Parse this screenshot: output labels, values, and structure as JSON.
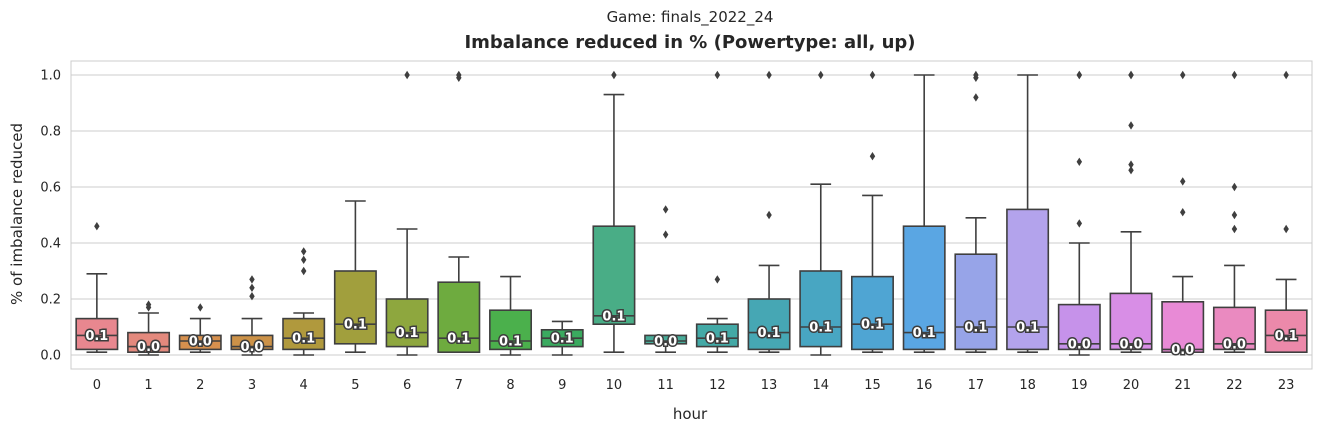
{
  "chart_data": {
    "type": "box",
    "suptitle": "Game: finals_2022_24",
    "title": "Imbalance reduced in % (Powertype: all, up)",
    "xlabel": "hour",
    "ylabel": "% of imbalance reduced",
    "ylim": [
      -0.05,
      1.05
    ],
    "yticks": [
      "0.0",
      "0.2",
      "0.4",
      "0.6",
      "0.8",
      "1.0"
    ],
    "ytick_values": [
      0.0,
      0.2,
      0.4,
      0.6,
      0.8,
      1.0
    ],
    "grid": true,
    "categories": [
      "0",
      "1",
      "2",
      "3",
      "4",
      "5",
      "6",
      "7",
      "8",
      "9",
      "10",
      "11",
      "12",
      "13",
      "14",
      "15",
      "16",
      "17",
      "18",
      "19",
      "20",
      "21",
      "22",
      "23"
    ],
    "boxes": [
      {
        "q1": 0.02,
        "median": 0.07,
        "q3": 0.13,
        "whislo": 0.01,
        "whishi": 0.29,
        "fliers": [
          0.46
        ],
        "color": "#e8878f",
        "label": "0.1"
      },
      {
        "q1": 0.01,
        "median": 0.03,
        "q3": 0.08,
        "whislo": 0.0,
        "whishi": 0.15,
        "fliers": [
          0.17,
          0.18
        ],
        "color": "#e3897d",
        "label": "0.0"
      },
      {
        "q1": 0.02,
        "median": 0.05,
        "q3": 0.07,
        "whislo": 0.01,
        "whishi": 0.13,
        "fliers": [
          0.17
        ],
        "color": "#d6904e",
        "label": "0.0"
      },
      {
        "q1": 0.02,
        "median": 0.03,
        "q3": 0.07,
        "whislo": 0.0,
        "whishi": 0.13,
        "fliers": [
          0.21,
          0.24,
          0.27
        ],
        "color": "#cc9248",
        "label": "0.0"
      },
      {
        "q1": 0.02,
        "median": 0.06,
        "q3": 0.13,
        "whislo": 0.0,
        "whishi": 0.15,
        "fliers": [
          0.3,
          0.34,
          0.37
        ],
        "color": "#b0993d",
        "label": "0.1"
      },
      {
        "q1": 0.04,
        "median": 0.11,
        "q3": 0.3,
        "whislo": 0.01,
        "whishi": 0.55,
        "fliers": [],
        "color": "#a19f3d",
        "label": "0.1"
      },
      {
        "q1": 0.03,
        "median": 0.08,
        "q3": 0.2,
        "whislo": 0.0,
        "whishi": 0.45,
        "fliers": [
          1.0
        ],
        "color": "#8ea73e",
        "label": "0.1"
      },
      {
        "q1": 0.01,
        "median": 0.06,
        "q3": 0.26,
        "whislo": 0.01,
        "whishi": 0.35,
        "fliers": [
          0.99,
          1.0
        ],
        "color": "#6eab3f",
        "label": "0.1"
      },
      {
        "q1": 0.02,
        "median": 0.05,
        "q3": 0.16,
        "whislo": 0.0,
        "whishi": 0.28,
        "fliers": [],
        "color": "#4bb04c",
        "label": "0.1"
      },
      {
        "q1": 0.03,
        "median": 0.06,
        "q3": 0.09,
        "whislo": 0.0,
        "whishi": 0.12,
        "fliers": [],
        "color": "#3aaa5f",
        "label": "0.1"
      },
      {
        "q1": 0.11,
        "median": 0.14,
        "q3": 0.46,
        "whislo": 0.01,
        "whishi": 0.93,
        "fliers": [
          1.0
        ],
        "color": "#49ad86",
        "label": "0.1"
      },
      {
        "q1": 0.04,
        "median": 0.05,
        "q3": 0.07,
        "whislo": 0.01,
        "whishi": 0.07,
        "fliers": [
          0.43,
          0.52
        ],
        "color": "#47ab98",
        "label": "0.0"
      },
      {
        "q1": 0.03,
        "median": 0.06,
        "q3": 0.11,
        "whislo": 0.01,
        "whishi": 0.13,
        "fliers": [
          0.27,
          1.0
        ],
        "color": "#43a9a6",
        "label": "0.1"
      },
      {
        "q1": 0.02,
        "median": 0.08,
        "q3": 0.2,
        "whislo": 0.01,
        "whishi": 0.32,
        "fliers": [
          0.5,
          1.0
        ],
        "color": "#46a7b4",
        "label": "0.1"
      },
      {
        "q1": 0.03,
        "median": 0.1,
        "q3": 0.3,
        "whislo": 0.0,
        "whishi": 0.61,
        "fliers": [
          1.0
        ],
        "color": "#48a6c2",
        "label": "0.1"
      },
      {
        "q1": 0.02,
        "median": 0.11,
        "q3": 0.28,
        "whislo": 0.01,
        "whishi": 0.57,
        "fliers": [
          0.71,
          1.0
        ],
        "color": "#4fa5d3",
        "label": "0.1"
      },
      {
        "q1": 0.02,
        "median": 0.08,
        "q3": 0.46,
        "whislo": 0.01,
        "whishi": 1.0,
        "fliers": [],
        "color": "#5aa6e3",
        "label": "0.1"
      },
      {
        "q1": 0.02,
        "median": 0.1,
        "q3": 0.36,
        "whislo": 0.01,
        "whishi": 0.49,
        "fliers": [
          0.92,
          0.99,
          1.0
        ],
        "color": "#97a4e8",
        "label": "0.1"
      },
      {
        "q1": 0.02,
        "median": 0.1,
        "q3": 0.52,
        "whislo": 0.01,
        "whishi": 1.0,
        "fliers": [],
        "color": "#b3a3ec",
        "label": "0.1"
      },
      {
        "q1": 0.02,
        "median": 0.04,
        "q3": 0.18,
        "whislo": 0.0,
        "whishi": 0.4,
        "fliers": [
          0.47,
          0.69,
          1.0,
          1.0
        ],
        "color": "#c692ea",
        "label": "0.0"
      },
      {
        "q1": 0.02,
        "median": 0.04,
        "q3": 0.22,
        "whislo": 0.01,
        "whishi": 0.44,
        "fliers": [
          0.66,
          0.68,
          0.82,
          1.0,
          1.0
        ],
        "color": "#d88ee6",
        "label": "0.0"
      },
      {
        "q1": 0.01,
        "median": 0.02,
        "q3": 0.19,
        "whislo": 0.01,
        "whishi": 0.28,
        "fliers": [
          0.51,
          0.62,
          1.0
        ],
        "color": "#e88ad6",
        "label": "0.0"
      },
      {
        "q1": 0.02,
        "median": 0.04,
        "q3": 0.17,
        "whislo": 0.01,
        "whishi": 0.32,
        "fliers": [
          0.45,
          0.5,
          0.6,
          1.0
        ],
        "color": "#ea8ac0",
        "label": "0.0"
      },
      {
        "q1": 0.01,
        "median": 0.07,
        "q3": 0.16,
        "whislo": 0.01,
        "whishi": 0.27,
        "fliers": [
          0.45,
          1.0
        ],
        "color": "#ec89aa",
        "label": "0.1"
      }
    ]
  }
}
